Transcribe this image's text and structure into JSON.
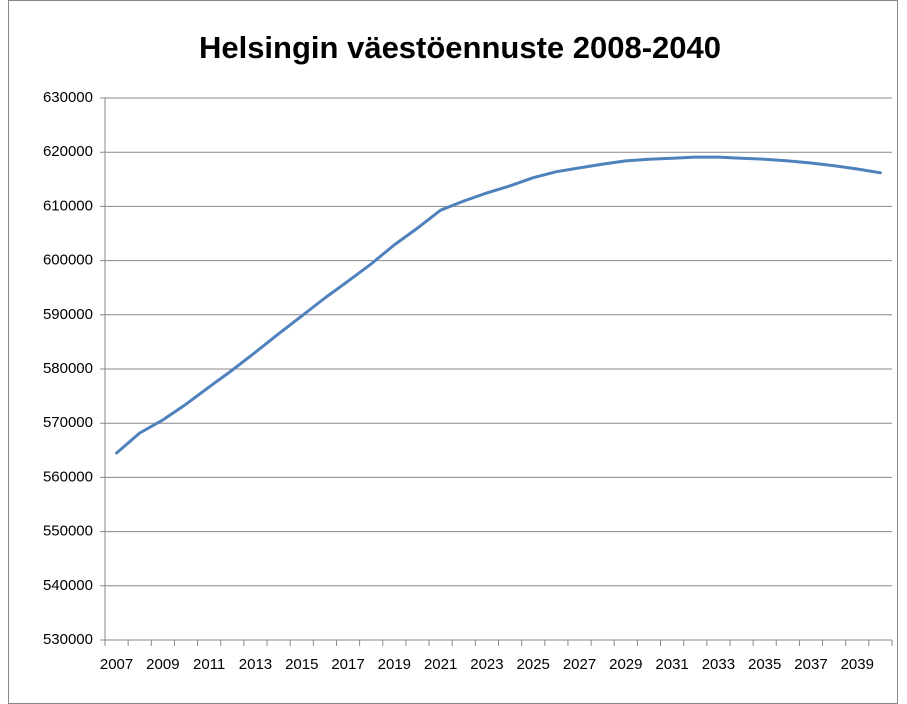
{
  "chart_data": {
    "type": "line",
    "title": "Helsingin väestöennuste 2008-2040",
    "categories": [
      "2007",
      null,
      "2009",
      null,
      "2011",
      null,
      "2013",
      null,
      "2015",
      null,
      "2017",
      null,
      "2019",
      null,
      "2021",
      null,
      "2023",
      null,
      "2025",
      null,
      "2027",
      null,
      "2029",
      null,
      "2031",
      null,
      "2033",
      null,
      "2035",
      null,
      "2037",
      null,
      "2039",
      null
    ],
    "series": [
      {
        "color": "#4f81bd",
        "values": [
          564500,
          568200,
          570600,
          573500,
          576700,
          579800,
          583100,
          586500,
          589800,
          593100,
          596200,
          599400,
          602900,
          606000,
          609300,
          611000,
          612500,
          613800,
          615300,
          616400,
          617100,
          617800,
          618400,
          618700,
          618900,
          619100,
          619100,
          618900,
          618700,
          618400,
          618000,
          617500,
          616900,
          616200
        ]
      }
    ],
    "ylim": [
      530000,
      630000
    ],
    "yticks": [
      530000,
      540000,
      550000,
      560000,
      570000,
      580000,
      590000,
      600000,
      610000,
      620000,
      630000
    ],
    "grid": true
  }
}
